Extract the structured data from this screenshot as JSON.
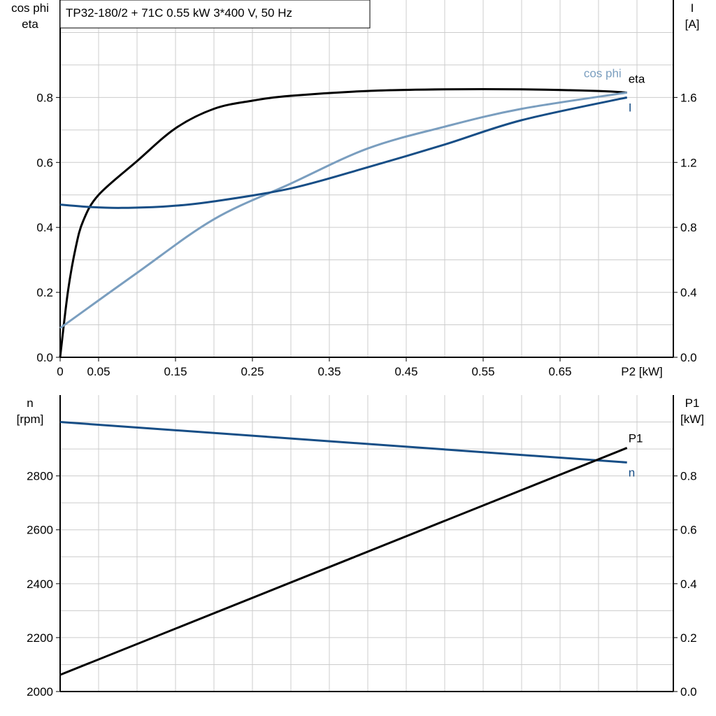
{
  "chart_data": [
    {
      "type": "line",
      "title": "TP32-180/2 + 71C   0.55 kW   3*400 V, 50 Hz",
      "ylabel_left": [
        "cos phi",
        "eta"
      ],
      "ylabel_right": [
        "I",
        "[A]"
      ],
      "xlabel": "P2 [kW]",
      "xlim": [
        0,
        0.795
      ],
      "ylim_left": [
        0,
        1.1
      ],
      "ylim_right": [
        0,
        2.2
      ],
      "xticks": [
        "0",
        "0.05",
        "0.15",
        "0.25",
        "0.35",
        "0.45",
        "0.55",
        "0.65"
      ],
      "xtick_values": [
        0,
        0.05,
        0.15,
        0.25,
        0.35,
        0.45,
        0.55,
        0.65
      ],
      "yticks_left": [
        "0.0",
        "0.2",
        "0.4",
        "0.6",
        "0.8"
      ],
      "yticks_right": [
        "0.0",
        "0.4",
        "0.8",
        "1.2",
        "1.6"
      ],
      "grid": true,
      "series": [
        {
          "name": "eta",
          "axis": "left",
          "color": "#000000",
          "x": [
            0,
            0.01,
            0.02,
            0.03,
            0.05,
            0.1,
            0.15,
            0.2,
            0.25,
            0.3,
            0.4,
            0.5,
            0.6,
            0.7,
            0.737
          ],
          "y": [
            0,
            0.2,
            0.335,
            0.42,
            0.5,
            0.604,
            0.705,
            0.765,
            0.79,
            0.805,
            0.82,
            0.825,
            0.825,
            0.82,
            0.815
          ]
        },
        {
          "name": "cos phi",
          "axis": "left",
          "color": "#7a9ebf",
          "x": [
            0,
            0.1,
            0.2,
            0.3,
            0.4,
            0.5,
            0.6,
            0.737
          ],
          "y": [
            0.09,
            0.26,
            0.425,
            0.535,
            0.643,
            0.71,
            0.765,
            0.815
          ]
        },
        {
          "name": "I",
          "axis": "right",
          "color": "#174e86",
          "x": [
            0,
            0.04,
            0.08,
            0.14,
            0.2,
            0.3,
            0.4,
            0.5,
            0.6,
            0.737
          ],
          "y": [
            0.94,
            0.925,
            0.92,
            0.93,
            0.96,
            1.04,
            1.17,
            1.31,
            1.46,
            1.6
          ]
        }
      ]
    },
    {
      "type": "line",
      "ylabel_left": [
        "n",
        "[rpm]"
      ],
      "ylabel_right": [
        "P1",
        "[kW]"
      ],
      "xlim": [
        0,
        0.795
      ],
      "ylim_left": [
        2000,
        3100
      ],
      "ylim_right": [
        0,
        1.1
      ],
      "yticks_left": [
        "2000",
        "2200",
        "2400",
        "2600",
        "2800"
      ],
      "yticks_right": [
        "0.0",
        "0.2",
        "0.4",
        "0.6",
        "0.8"
      ],
      "grid": true,
      "series": [
        {
          "name": "n",
          "axis": "left",
          "color": "#174e86",
          "x": [
            0,
            0.737
          ],
          "y": [
            3000,
            2850
          ]
        },
        {
          "name": "P1",
          "axis": "right",
          "color": "#000000",
          "x": [
            0,
            0.737
          ],
          "y": [
            0.062,
            0.904
          ]
        }
      ]
    }
  ]
}
